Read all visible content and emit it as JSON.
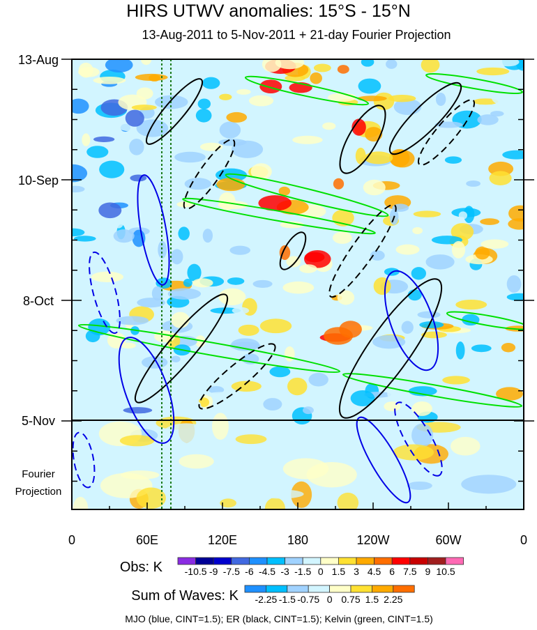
{
  "chart_data": {
    "type": "heatmap",
    "title": "HIRS UTWV anomalies: 15°S - 15°N",
    "subtitle": "13-Aug-2011 to 5-Nov-2011 + 21-day Fourier Projection",
    "x_ticks": [
      "0",
      "60E",
      "120E",
      "180",
      "120W",
      "60W",
      "0"
    ],
    "y_ticks": [
      "13-Aug",
      "10-Sep",
      "8-Oct",
      "5-Nov"
    ],
    "projection_label_1": "Fourier",
    "projection_label_2": "Projection",
    "obs_colorbar": {
      "label": "Obs: K",
      "ticks": [
        "-10.5",
        "-9",
        "-7.5",
        "-6",
        "-4.5",
        "-3",
        "-1.5",
        "0",
        "1.5",
        "3",
        "4.5",
        "6",
        "7.5",
        "9",
        "10.5"
      ],
      "colors": [
        "#8a2be2",
        "#000096",
        "#0000cd",
        "#4169e1",
        "#1e90ff",
        "#00bfff",
        "#a0d2ff",
        "#d2f5ff",
        "#ffffc8",
        "#ffe132",
        "#ffaa00",
        "#ff6e00",
        "#ff0000",
        "#c80000",
        "#a01e1e",
        "#ff69b4"
      ]
    },
    "waves_colorbar": {
      "label": "Sum of Waves: K",
      "ticks": [
        "-2.25",
        "-1.5",
        "-0.75",
        "0",
        "0.75",
        "1.5",
        "2.25"
      ],
      "colors": [
        "#1e90ff",
        "#00bfff",
        "#a0d2ff",
        "#d2f5ff",
        "#ffffc8",
        "#ffe132",
        "#ffaa00",
        "#ff6e00"
      ]
    },
    "footer": "MJO (blue, CINT=1.5); ER (black, CINT=1.5); Kelvin (green, CINT=1.5)"
  }
}
